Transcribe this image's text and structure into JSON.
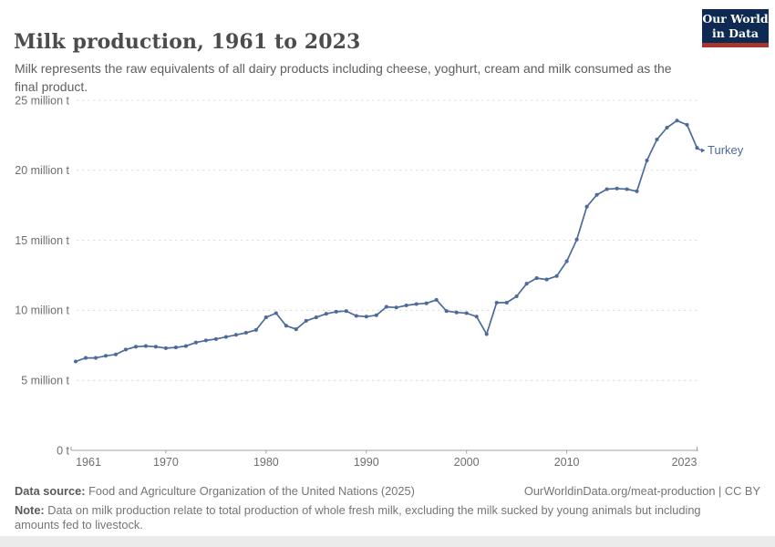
{
  "header": {
    "title": "Milk production, 1961 to 2023",
    "subtitle": "Milk represents the raw equivalents of all dairy products including cheese, yoghurt, cream and milk consumed as the final product."
  },
  "logo": {
    "line1": "Our World",
    "line2": "in Data"
  },
  "chart_data": {
    "type": "line",
    "title": "Milk production, 1961 to 2023",
    "xlabel": "",
    "ylabel": "",
    "unit": "million t",
    "grid": true,
    "legend_position": "end-of-line label",
    "xlim": [
      1961,
      2023
    ],
    "ylim": [
      0,
      25
    ],
    "x_ticks": [
      1961,
      1970,
      1980,
      1990,
      2000,
      2010,
      2023
    ],
    "y_ticks": [
      {
        "value": 0,
        "label": "0 t"
      },
      {
        "value": 5,
        "label": "5 million t"
      },
      {
        "value": 10,
        "label": "10 million t"
      },
      {
        "value": 15,
        "label": "15 million t"
      },
      {
        "value": 20,
        "label": "20 million t"
      },
      {
        "value": 25,
        "label": "25 million t"
      }
    ],
    "series": [
      {
        "name": "Turkey",
        "color": "#4C6A9C",
        "start_year": 1961,
        "values": [
          6.35,
          6.6,
          6.6,
          6.75,
          6.85,
          7.2,
          7.4,
          7.45,
          7.4,
          7.3,
          7.35,
          7.45,
          7.7,
          7.85,
          7.95,
          8.1,
          8.25,
          8.4,
          8.6,
          9.5,
          9.8,
          8.9,
          8.65,
          9.25,
          9.5,
          9.75,
          9.9,
          9.95,
          9.6,
          9.55,
          9.65,
          10.25,
          10.2,
          10.35,
          10.45,
          10.5,
          10.75,
          9.95,
          9.85,
          9.8,
          9.55,
          8.3,
          10.55,
          10.55,
          11.0,
          11.9,
          12.3,
          12.2,
          12.45,
          13.5,
          15.05,
          17.4,
          18.25,
          18.65,
          18.7,
          18.65,
          18.5,
          20.7,
          22.2,
          23.05,
          23.55,
          23.25,
          21.6
        ]
      }
    ]
  },
  "footer": {
    "source_label": "Data source:",
    "source_text": " Food and Agriculture Organization of the United Nations (2025)",
    "link_text": "OurWorldinData.org/meat-production | CC BY",
    "note_label": "Note:",
    "note_text": " Data on milk production relate to total production of whole fresh milk, excluding the milk sucked by young animals but including amounts fed to livestock."
  },
  "colors": {
    "line": "#4C6A9C",
    "grid": "#dcdcdc",
    "axis": "#a1a1a1",
    "tick_text": "#6e6e6e",
    "logo_bg": "#0f2a52",
    "logo_accent": "#a5362d"
  }
}
